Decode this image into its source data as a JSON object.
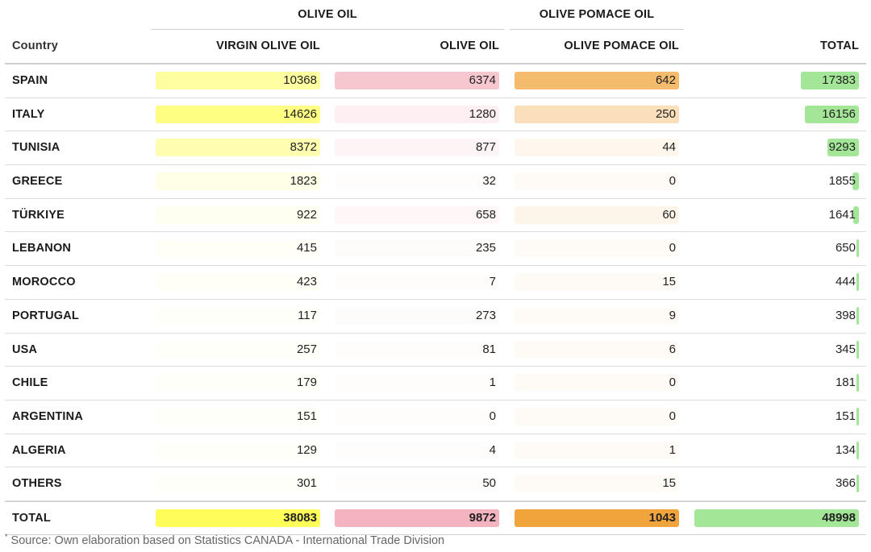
{
  "groups": {
    "olive_oil": "OLIVE OIL",
    "olive_pomace_oil": "OLIVE POMACE OIL"
  },
  "headers": {
    "country": "Country",
    "virgin": "VIRGIN OLIVE OIL",
    "olive": "OLIVE OIL",
    "pomace": "OLIVE POMACE OIL",
    "total": "TOTAL"
  },
  "colors": {
    "virgin": "#fefd5a",
    "olive": "#f3b4bf",
    "pomace": "#f1a43c",
    "total": "#a3e697"
  },
  "chart_data": {
    "type": "table",
    "columns": [
      "Country",
      "VIRGIN OLIVE OIL",
      "OLIVE OIL",
      "OLIVE POMACE OIL",
      "TOTAL"
    ],
    "rows": [
      {
        "country": "SPAIN",
        "virgin": 10368,
        "olive": 6374,
        "pomace": 642,
        "total": 17383
      },
      {
        "country": "ITALY",
        "virgin": 14626,
        "olive": 1280,
        "pomace": 250,
        "total": 16156
      },
      {
        "country": "TUNISIA",
        "virgin": 8372,
        "olive": 877,
        "pomace": 44,
        "total": 9293
      },
      {
        "country": "GREECE",
        "virgin": 1823,
        "olive": 32,
        "pomace": 0,
        "total": 1855
      },
      {
        "country": "TÜRKIYE",
        "virgin": 922,
        "olive": 658,
        "pomace": 60,
        "total": 1641
      },
      {
        "country": "LEBANON",
        "virgin": 415,
        "olive": 235,
        "pomace": 0,
        "total": 650
      },
      {
        "country": "MOROCCO",
        "virgin": 423,
        "olive": 7,
        "pomace": 15,
        "total": 444
      },
      {
        "country": "PORTUGAL",
        "virgin": 117,
        "olive": 273,
        "pomace": 9,
        "total": 398
      },
      {
        "country": "USA",
        "virgin": 257,
        "olive": 81,
        "pomace": 6,
        "total": 345
      },
      {
        "country": "CHILE",
        "virgin": 179,
        "olive": 1,
        "pomace": 0,
        "total": 181
      },
      {
        "country": "ARGENTINA",
        "virgin": 151,
        "olive": 0,
        "pomace": 0,
        "total": 151
      },
      {
        "country": "ALGERIA",
        "virgin": 129,
        "olive": 4,
        "pomace": 1,
        "total": 134
      },
      {
        "country": "OTHERS",
        "virgin": 301,
        "olive": 50,
        "pomace": 15,
        "total": 366
      }
    ],
    "totals": {
      "country": "TOTAL",
      "virgin": 38083,
      "olive": 9872,
      "pomace": 1043,
      "total": 48998
    }
  },
  "footnote": {
    "marker": "*",
    "text": "Source: Own elaboration based on Statistics CANADA - International Trade Division"
  }
}
